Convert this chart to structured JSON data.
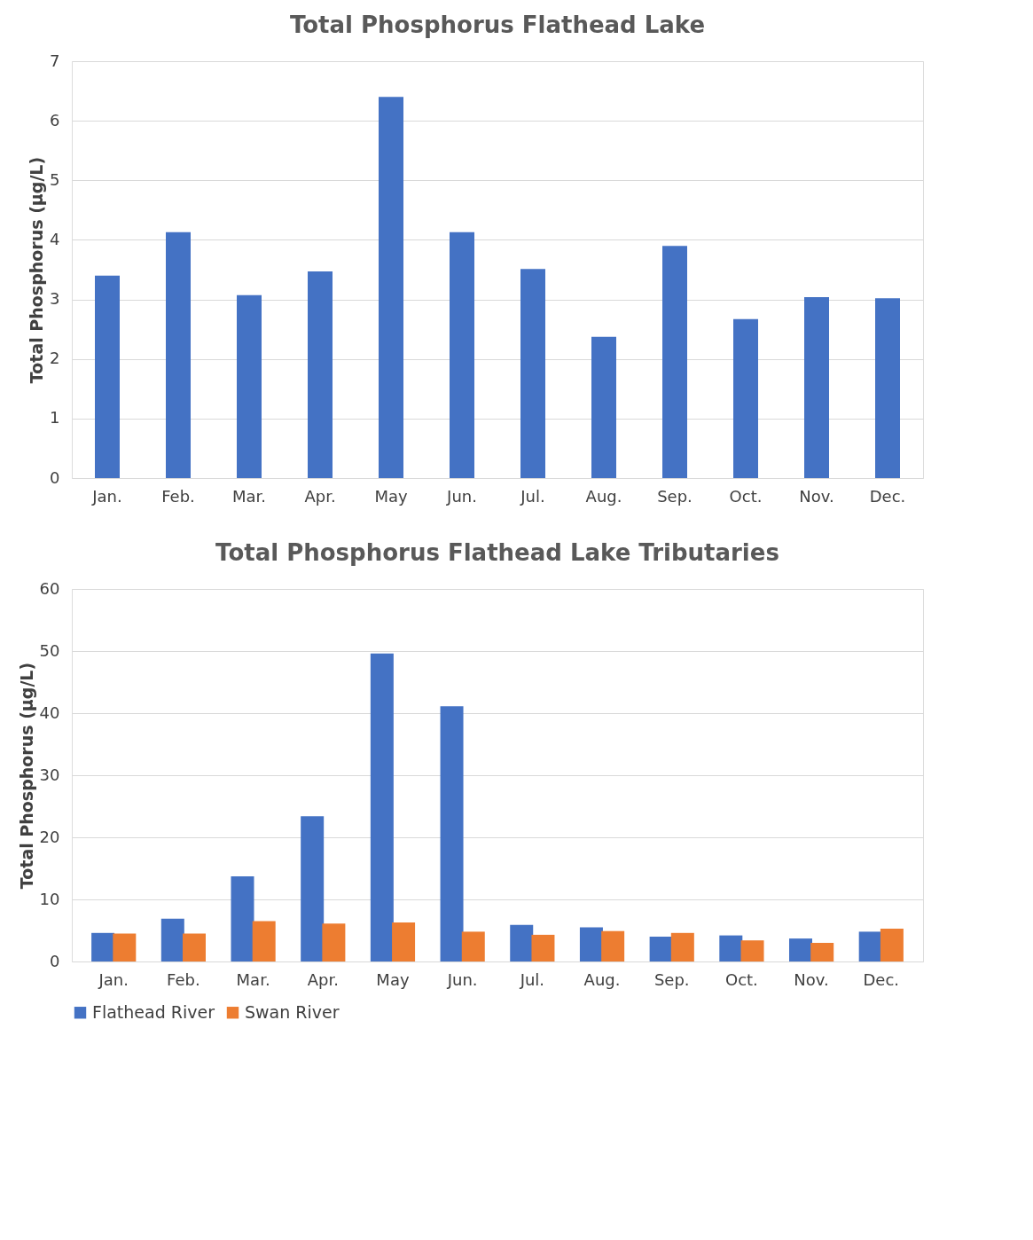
{
  "chart_data": [
    {
      "type": "bar",
      "title": "Total Phosphorus  Flathead Lake",
      "ylabel": "Total Phosphorus (µg/L)",
      "categories": [
        "Jan.",
        "Feb.",
        "Mar.",
        "Apr.",
        "May",
        "Jun.",
        "Jul.",
        "Aug.",
        "Sep.",
        "Oct.",
        "Nov.",
        "Dec."
      ],
      "values": [
        3.4,
        4.13,
        3.07,
        3.47,
        6.4,
        4.13,
        3.51,
        2.37,
        3.9,
        2.67,
        3.04,
        3.02
      ],
      "color": "#4472c4",
      "ylim": [
        0,
        7
      ],
      "yticks": [
        0,
        1,
        2,
        3,
        4,
        5,
        6,
        7
      ],
      "grid": "y",
      "legend": false
    },
    {
      "type": "bar",
      "title": "Total Phosphorus  Flathead Lake Tributaries",
      "ylabel": "Total Phosphorus (µg/L)",
      "categories": [
        "Jan.",
        "Feb.",
        "Mar.",
        "Apr.",
        "May",
        "Jun.",
        "Jul.",
        "Aug.",
        "Sep.",
        "Oct.",
        "Nov.",
        "Dec."
      ],
      "series": [
        {
          "name": "Flathead River",
          "color": "#4472c4",
          "values": [
            4.6,
            6.9,
            13.7,
            23.4,
            49.6,
            41.1,
            5.9,
            5.5,
            4.0,
            4.2,
            3.7,
            4.8
          ]
        },
        {
          "name": "Swan River",
          "color": "#ed7d31",
          "values": [
            4.5,
            4.5,
            6.5,
            6.1,
            6.3,
            4.8,
            4.3,
            4.9,
            4.6,
            3.4,
            3.0,
            5.3
          ]
        }
      ],
      "ylim": [
        0,
        60
      ],
      "yticks": [
        0,
        10,
        20,
        30,
        40,
        50,
        60
      ],
      "grid": "y",
      "legend": "bottom"
    }
  ]
}
